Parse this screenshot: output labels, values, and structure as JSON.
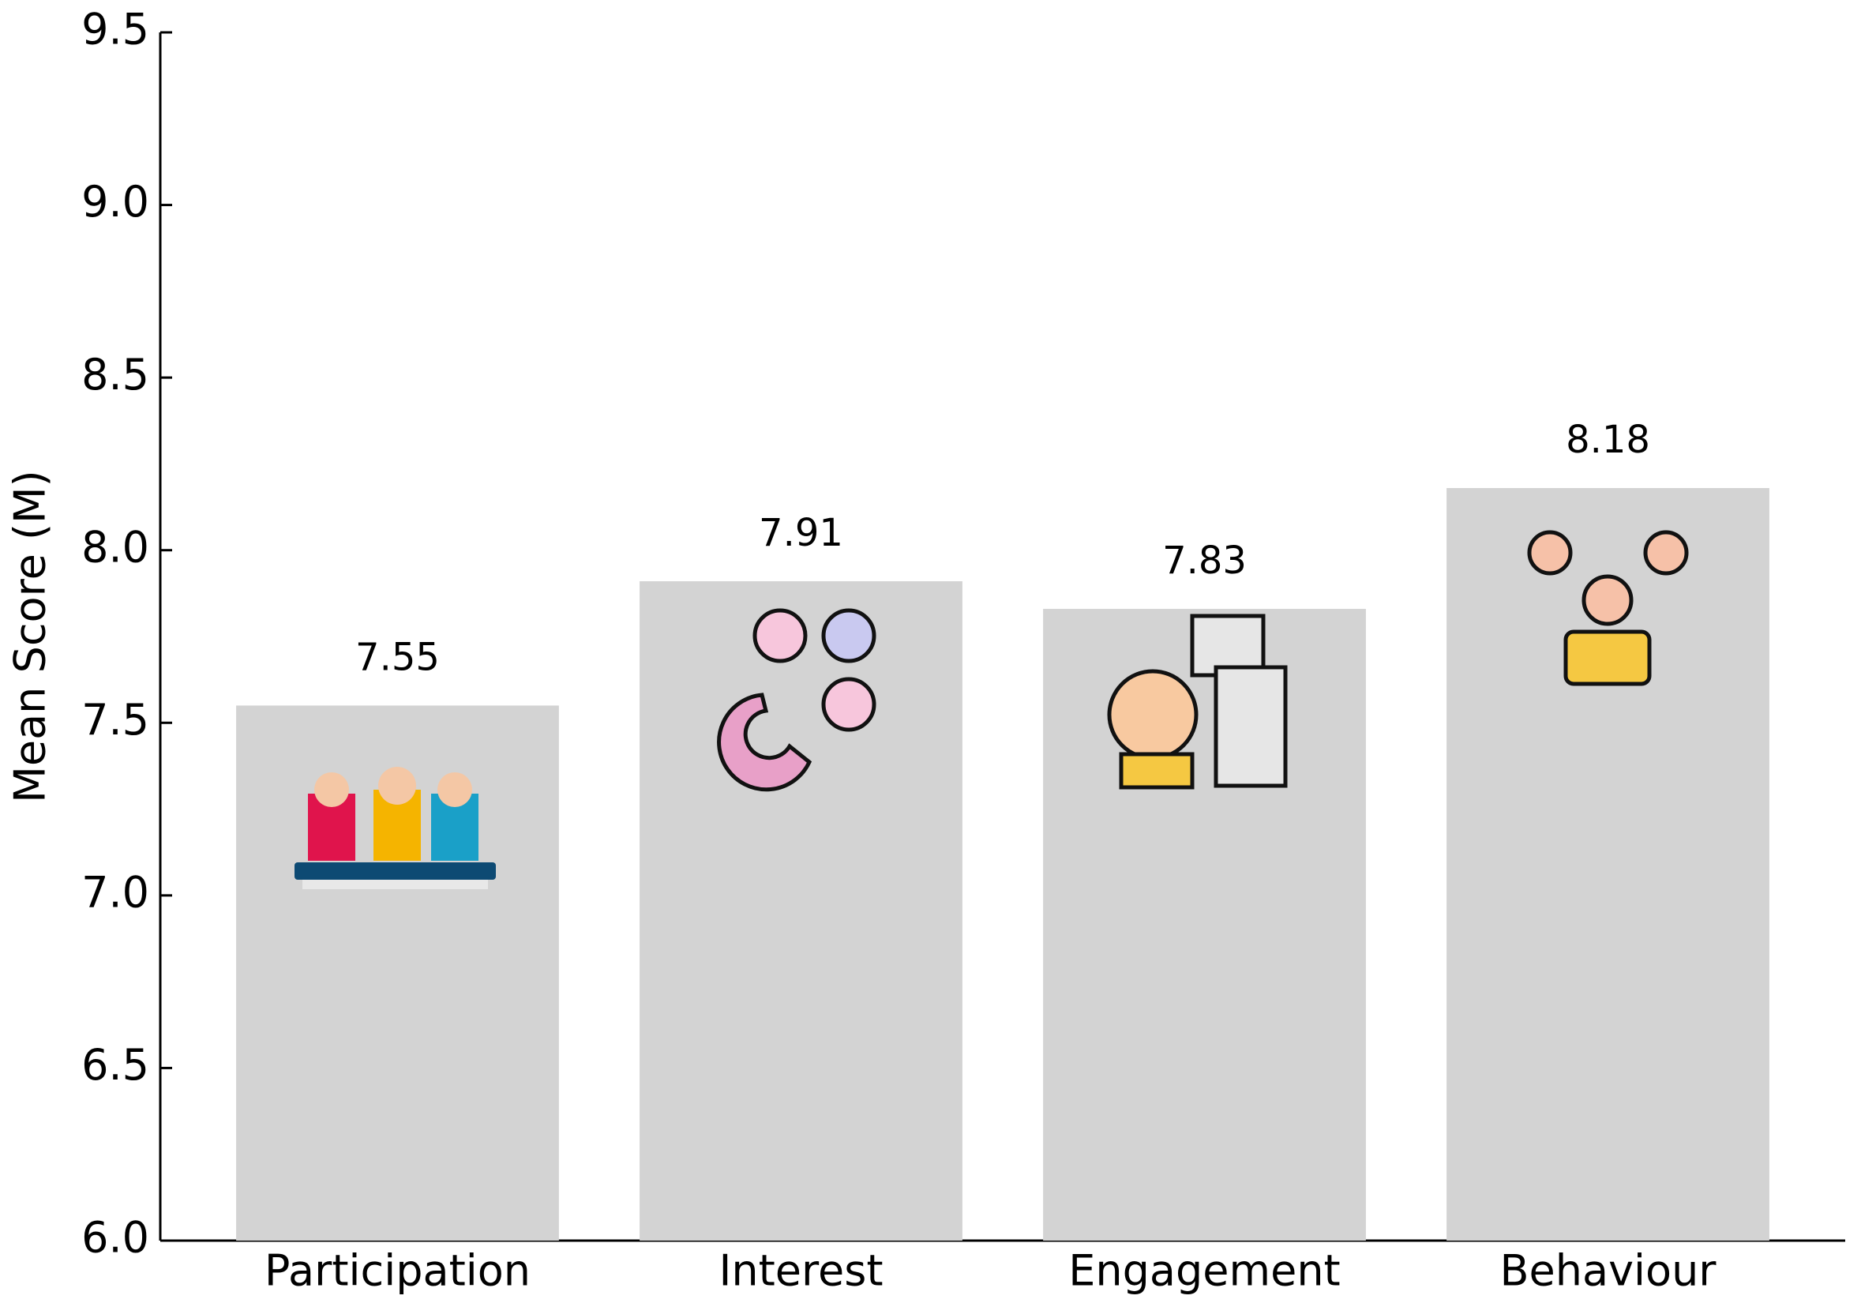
{
  "chart_data": {
    "type": "bar",
    "y_label": "Mean Score (M)",
    "categories": [
      "Participation",
      "Interest",
      "Engagement",
      "Behaviour"
    ],
    "values": [
      7.55,
      7.91,
      7.83,
      8.18
    ],
    "color": "#d3d3d3",
    "ylim": [
      6.0,
      9.5
    ],
    "yticks": [
      {
        "value": 6,
        "label": "6.0"
      },
      6.5,
      {
        "value": 7,
        "label": "7.0"
      },
      7.5,
      {
        "value": 8,
        "label": "8.0"
      },
      8.5,
      {
        "value": 9,
        "label": "9.0"
      },
      9.5
    ],
    "grid": false
  }
}
